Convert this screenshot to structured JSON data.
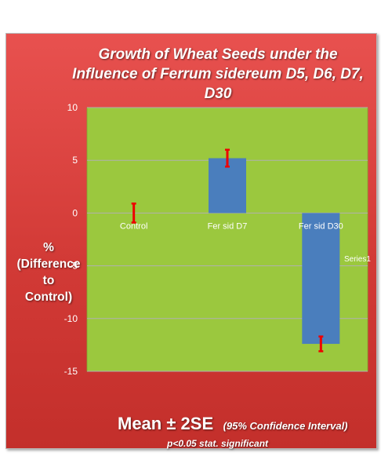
{
  "chart_data": {
    "type": "bar",
    "title_lines": [
      "Growth of Wheat Seeds under the",
      "Influence of Ferrum sidereum D5, D6, D7,",
      "D30"
    ],
    "ylabel_lines": [
      "%",
      "(Difference",
      "to",
      "Control)"
    ],
    "categories": [
      "Control",
      "Fer sid D7",
      "Fer sid D30"
    ],
    "series": [
      {
        "name": "Series1",
        "values": [
          0,
          5.2,
          -12.4
        ],
        "error": [
          0.9,
          0.8,
          0.7
        ]
      }
    ],
    "ylim": [
      -15,
      10
    ],
    "yticks": [
      "10",
      "5",
      "0",
      "-5",
      "-10",
      "-15"
    ],
    "grid": true,
    "legend_position": "right",
    "footer_main": "Mean  ± 2SE",
    "footer_note": "(95% Confidence Interval)",
    "footer_sub": "p<0.05 stat. significant"
  },
  "colors": {
    "background": "#d63b37",
    "plot_area": "#9bc83e",
    "bar": "#4a7ebd",
    "error_bar": "#ee0000",
    "gridline": "#b0b0b0",
    "text": "#ffffff"
  }
}
